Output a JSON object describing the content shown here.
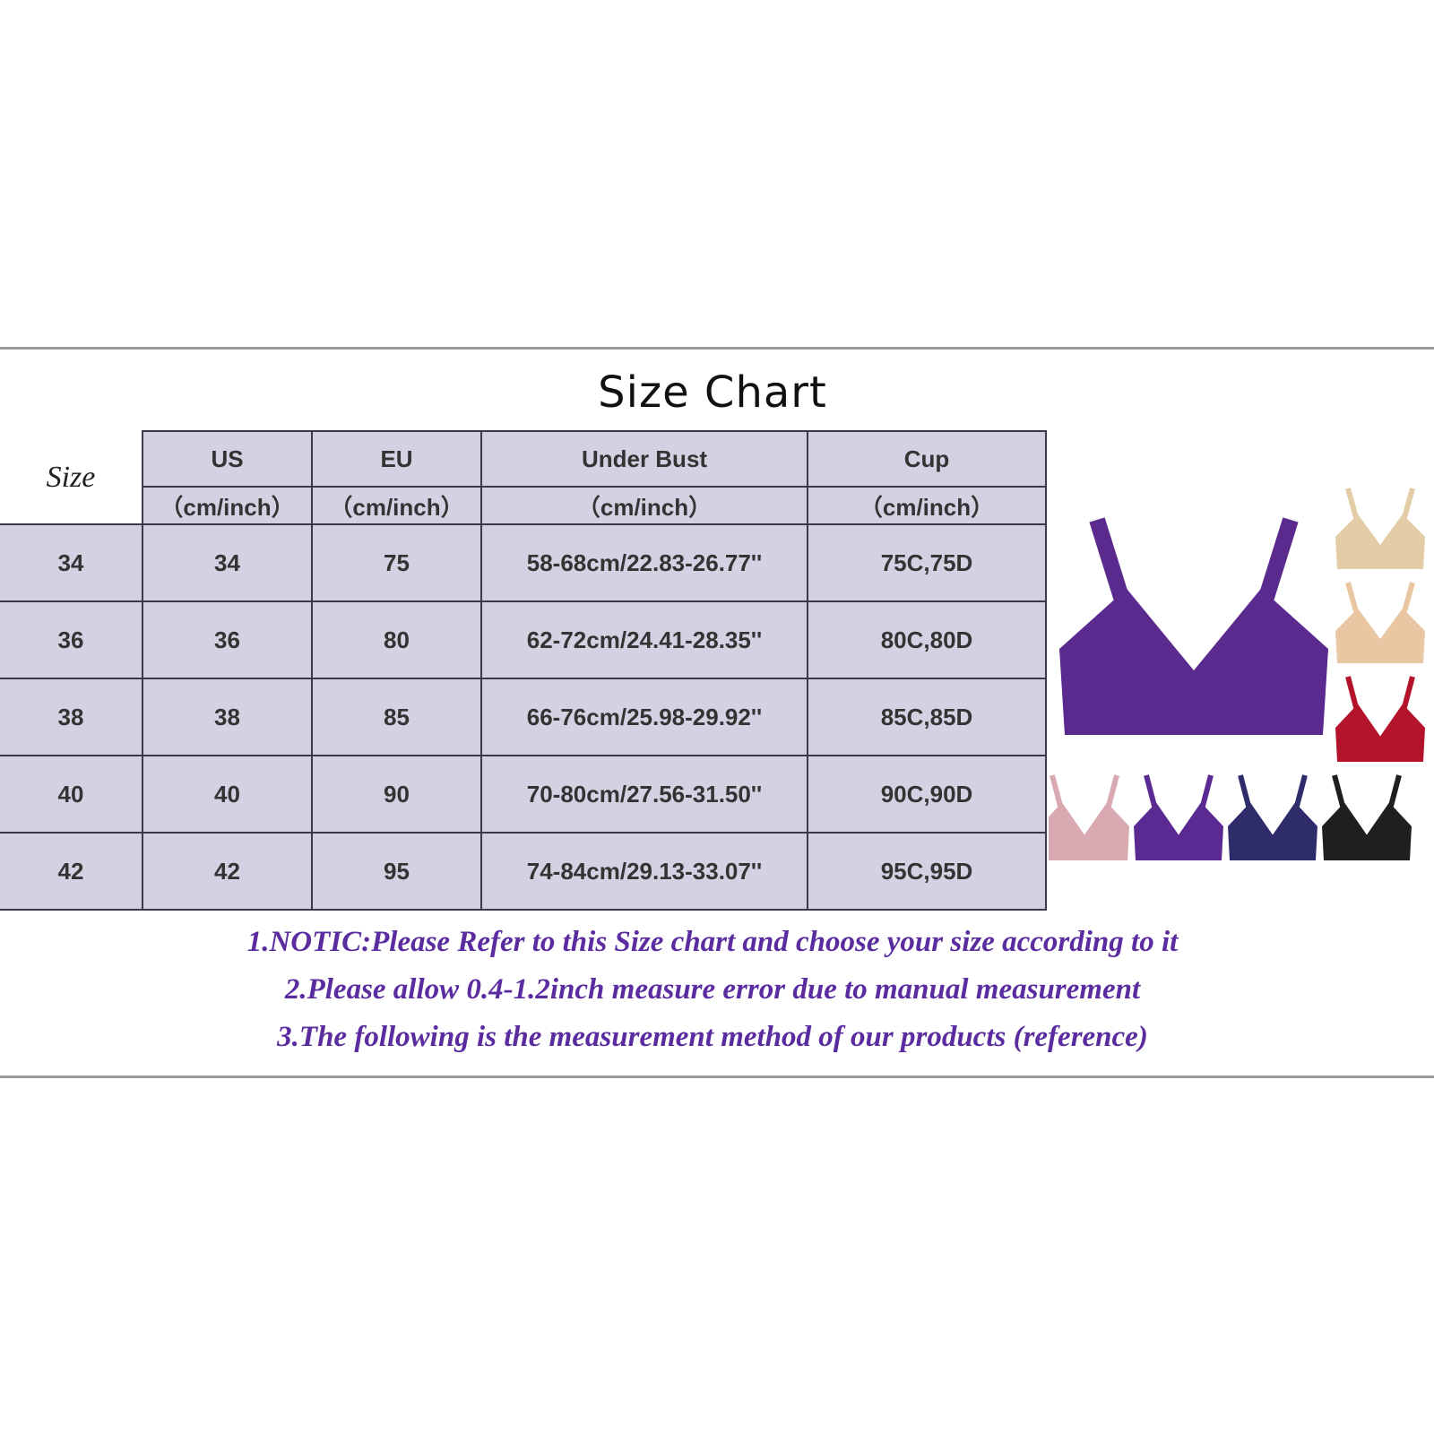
{
  "title": "Size Chart",
  "table": {
    "size_header": "Size",
    "columns": [
      {
        "label": "US",
        "unit": "（cm/inch）"
      },
      {
        "label": "EU",
        "unit": "（cm/inch）"
      },
      {
        "label": "Under Bust",
        "unit": "（cm/inch）"
      },
      {
        "label": "Cup",
        "unit": "（cm/inch）"
      }
    ],
    "rows": [
      [
        "34",
        "34",
        "75",
        "58-68cm/22.83-26.77''",
        "75C,75D"
      ],
      [
        "36",
        "36",
        "80",
        "62-72cm/24.41-28.35''",
        "80C,80D"
      ],
      [
        "38",
        "38",
        "85",
        "66-76cm/25.98-29.92''",
        "85C,85D"
      ],
      [
        "40",
        "40",
        "90",
        "70-80cm/27.56-31.50''",
        "90C,90D"
      ],
      [
        "42",
        "42",
        "95",
        "74-84cm/29.13-33.07''",
        "95C,95D"
      ]
    ]
  },
  "notes": [
    "1.NOTIC:Please Refer to this Size chart and choose your size according to it",
    "2.Please allow 0.4-1.2inch measure error due to manual measurement",
    "3.The following is the measurement method of our products (reference)"
  ],
  "product_colors": {
    "main": "#5b2a8e",
    "swatches": [
      "#e4cca6",
      "#e9c7a3",
      "#b3142c",
      "#d9a9b2",
      "#5a2a92",
      "#2e2c6a",
      "#1f1f1f"
    ]
  }
}
